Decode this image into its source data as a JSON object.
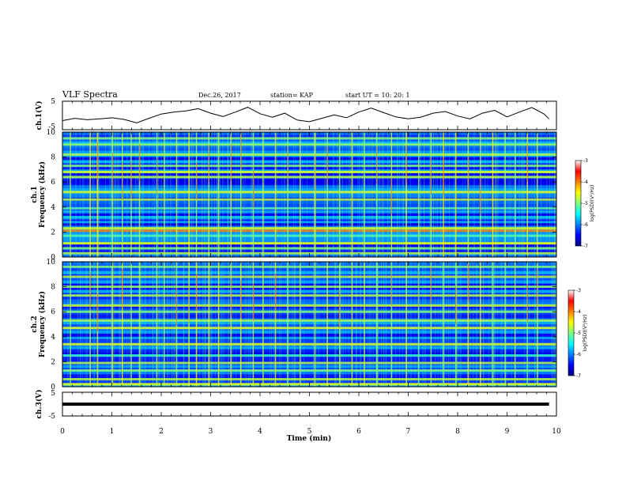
{
  "header": {
    "title": "VLF Spectra",
    "date": "Dec.26, 2017",
    "station": "station= KAP",
    "start": "start  UT =   10: 20: 1"
  },
  "chart_data": [
    {
      "type": "line",
      "name": "ch1-waveform",
      "ylabel": "ch.1(V)",
      "xlim": [
        0,
        10
      ],
      "ylim": [
        -5,
        5
      ],
      "yticks": [
        "5",
        "-5"
      ],
      "x": [
        0,
        0.25,
        0.5,
        0.75,
        1.0,
        1.25,
        1.5,
        1.75,
        2.0,
        2.25,
        2.5,
        2.75,
        3.0,
        3.25,
        3.5,
        3.75,
        4.0,
        4.25,
        4.5,
        4.75,
        5.0,
        5.25,
        5.5,
        5.75,
        6.0,
        6.25,
        6.5,
        6.75,
        7.0,
        7.25,
        7.5,
        7.75,
        8.0,
        8.25,
        8.5,
        8.75,
        9.0,
        9.25,
        9.5,
        9.75,
        9.85
      ],
      "y": [
        -1.8,
        -1.0,
        -1.5,
        -1.2,
        -0.8,
        -1.4,
        -2.6,
        -1.0,
        0.5,
        1.2,
        1.6,
        2.4,
        0.8,
        -0.4,
        1.2,
        2.9,
        0.6,
        -0.6,
        0.8,
        -1.6,
        -2.2,
        -1.0,
        0.2,
        -0.8,
        1.2,
        2.6,
        1.0,
        -0.5,
        -1.2,
        -0.6,
        0.8,
        1.4,
        -0.2,
        -1.2,
        0.8,
        1.8,
        -0.5,
        1.2,
        2.8,
        0.5,
        -1.2
      ]
    },
    {
      "type": "heatmap",
      "name": "ch1-spectrogram",
      "ylabel": "ch.1\nFrequency (kHz)",
      "xlim": [
        0,
        10
      ],
      "ylim": [
        0,
        10
      ],
      "yticks": [
        "10",
        "8",
        "6",
        "4",
        "2",
        "0"
      ],
      "colorbar": {
        "label": "log(PSD)(V²/Hz)",
        "range": [
          -7,
          -3
        ],
        "ticks": [
          "-3",
          "-4",
          "-5",
          "-6",
          "-7"
        ]
      },
      "bands": [
        {
          "freq": 0.3,
          "level": 0.55
        },
        {
          "freq": 0.7,
          "level": 0.5
        },
        {
          "freq": 1.1,
          "level": 0.62
        },
        {
          "freq": 1.7,
          "level": 0.45
        },
        {
          "freq": 2.1,
          "level": 0.75
        },
        {
          "freq": 2.3,
          "level": 0.6
        },
        {
          "freq": 2.8,
          "level": 0.3
        },
        {
          "freq": 3.2,
          "level": 0.32
        },
        {
          "freq": 3.9,
          "level": 0.45
        },
        {
          "freq": 4.6,
          "level": 0.55
        },
        {
          "freq": 5.2,
          "level": 0.6
        },
        {
          "freq": 6.4,
          "level": 0.55
        },
        {
          "freq": 6.8,
          "level": 0.6
        },
        {
          "freq": 7.3,
          "level": 0.5
        },
        {
          "freq": 8.2,
          "level": 0.55
        },
        {
          "freq": 9.0,
          "level": 0.52
        },
        {
          "freq": 9.5,
          "level": 0.5
        }
      ],
      "bursts": [
        0.15,
        0.55,
        0.7,
        1.0,
        1.2,
        1.38,
        1.55,
        1.9,
        2.05,
        2.3,
        2.55,
        2.7,
        2.95,
        3.15,
        3.4,
        3.6,
        3.85,
        4.05,
        4.3,
        4.55,
        4.8,
        5.1,
        5.35,
        5.6,
        5.85,
        6.1,
        6.35,
        6.65,
        6.95,
        7.2,
        7.45,
        7.7,
        7.95,
        8.2,
        8.45,
        8.7,
        8.95,
        9.15,
        9.4,
        9.6
      ]
    },
    {
      "type": "heatmap",
      "name": "ch2-spectrogram",
      "ylabel": "ch.2\nFrequency (kHz)",
      "xlim": [
        0,
        10
      ],
      "ylim": [
        0,
        10
      ],
      "yticks": [
        "10",
        "8",
        "6",
        "4",
        "2",
        "0"
      ],
      "colorbar": {
        "label": "log(PSD)(V²/Hz)",
        "range": [
          -7,
          -3
        ],
        "ticks": [
          "-3",
          "-4",
          "-5",
          "-6",
          "-7"
        ]
      },
      "bands": [
        {
          "freq": 0.2,
          "level": 0.62
        },
        {
          "freq": 0.6,
          "level": 0.55
        },
        {
          "freq": 1.3,
          "level": 0.5
        },
        {
          "freq": 1.9,
          "level": 0.55
        },
        {
          "freq": 2.5,
          "level": 0.42
        },
        {
          "freq": 3.4,
          "level": 0.6
        },
        {
          "freq": 3.9,
          "level": 0.3
        },
        {
          "freq": 4.7,
          "level": 0.6
        },
        {
          "freq": 5.3,
          "level": 0.55
        },
        {
          "freq": 6.0,
          "level": 0.5
        },
        {
          "freq": 6.5,
          "level": 0.58
        },
        {
          "freq": 7.3,
          "level": 0.55
        },
        {
          "freq": 8.0,
          "level": 0.52
        },
        {
          "freq": 8.8,
          "level": 0.55
        },
        {
          "freq": 9.6,
          "level": 0.5
        }
      ],
      "bursts": [
        0.15,
        0.55,
        0.7,
        1.0,
        1.2,
        1.38,
        1.55,
        1.9,
        2.05,
        2.3,
        2.55,
        2.7,
        2.95,
        3.15,
        3.4,
        3.6,
        3.85,
        4.05,
        4.3,
        4.55,
        4.8,
        5.1,
        5.35,
        5.6,
        5.85,
        6.1,
        6.35,
        6.65,
        6.95,
        7.2,
        7.45,
        7.7,
        7.95,
        8.2,
        8.45,
        8.7,
        8.95,
        9.15,
        9.4,
        9.6
      ]
    },
    {
      "type": "line",
      "name": "ch3-waveform",
      "ylabel": "ch.3(V)",
      "xlim": [
        0,
        10
      ],
      "ylim": [
        -5,
        5
      ],
      "yticks": [
        "5",
        "-5"
      ],
      "x": [
        0,
        9.85
      ],
      "y": [
        0,
        0
      ]
    }
  ],
  "xaxis": {
    "label": "Time (min)",
    "ticks": [
      "0",
      "1",
      "2",
      "3",
      "4",
      "5",
      "6",
      "7",
      "8",
      "9",
      "10"
    ]
  }
}
